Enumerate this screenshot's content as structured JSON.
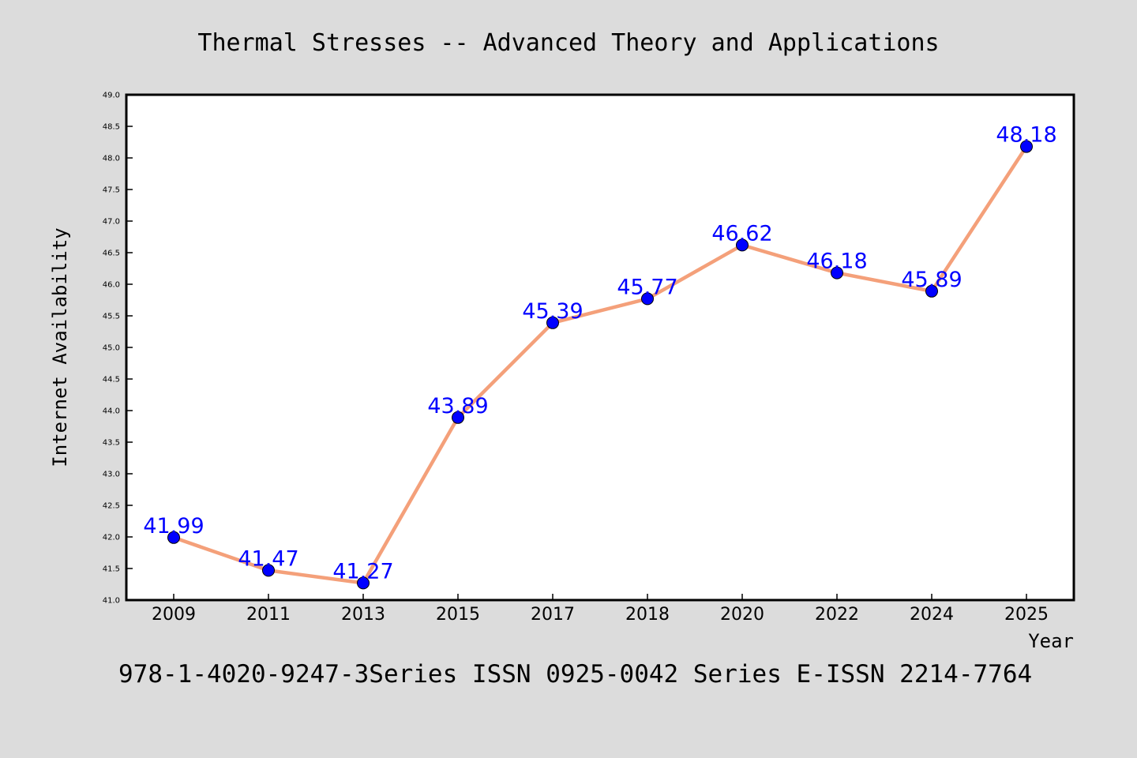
{
  "chart_data": {
    "type": "line",
    "title": "Thermal Stresses -- Advanced Theory and Applications",
    "xlabel": "Year",
    "ylabel": "Internet Availability",
    "footer": "978-1-4020-9247-3Series ISSN 0925-0042 Series E-ISSN 2214-7764",
    "categories": [
      "2009",
      "2011",
      "2013",
      "2015",
      "2017",
      "2018",
      "2020",
      "2022",
      "2024",
      "2025"
    ],
    "series": [
      {
        "values": [
          41.99,
          41.47,
          41.27,
          43.89,
          45.39,
          45.77,
          46.62,
          46.18,
          45.89,
          48.18
        ],
        "labels": [
          "41.99",
          "41.47",
          "41.27",
          "43.89",
          "45.39",
          "45.77",
          "46.62",
          "46.18",
          "45.89",
          "48.18"
        ],
        "line_color": "#f4a07a",
        "marker_color": "#0000ff",
        "label_color": "#0000ff"
      }
    ],
    "ylim": [
      41.0,
      49.0
    ],
    "yticks": [
      "41.0",
      "41.5",
      "42.0",
      "42.5",
      "43.0",
      "43.5",
      "44.0",
      "44.5",
      "45.0",
      "45.5",
      "46.0",
      "46.5",
      "47.0",
      "47.5",
      "48.0",
      "48.5",
      "49.0"
    ],
    "grid": false,
    "legend": "none",
    "background": "#dcdcdc",
    "plot_background": "#ffffff"
  }
}
